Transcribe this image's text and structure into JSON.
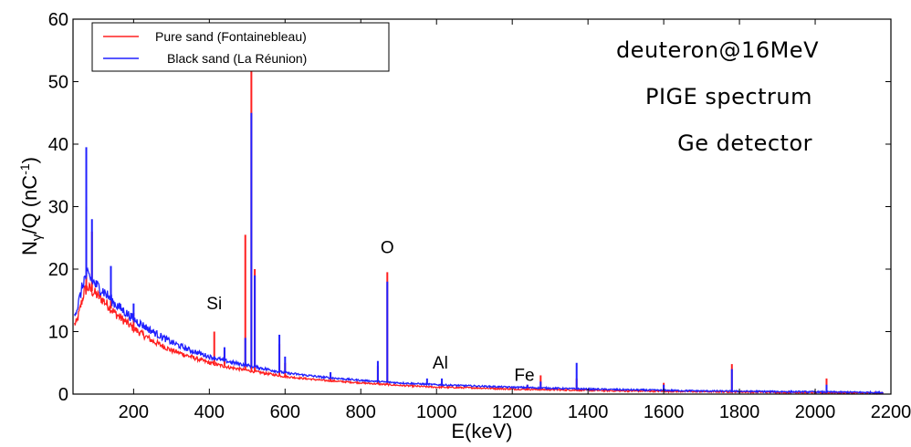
{
  "chart_data": {
    "type": "line",
    "xlabel": "E(keV)",
    "ylabel_main": "N",
    "ylabel_sub": "γ",
    "ylabel_rest": "/Q (nC",
    "ylabel_sup": "-1",
    "ylabel_end": ")",
    "xlim": [
      40,
      2200
    ],
    "ylim": [
      0,
      60
    ],
    "x_ticks": [
      "200",
      "400",
      "600",
      "800",
      "1000",
      "1200",
      "1400",
      "1600",
      "1800",
      "2000",
      "2200"
    ],
    "y_ticks": [
      "0",
      "10",
      "20",
      "30",
      "40",
      "50",
      "60"
    ],
    "annotations": [
      {
        "text": "Si",
        "x": 413,
        "y": 13
      },
      {
        "text": "O",
        "x": 870,
        "y": 22
      },
      {
        "text": "Al",
        "x": 1010,
        "y": 3.5
      },
      {
        "text": "Fe",
        "x": 1232,
        "y": 1.5
      }
    ],
    "info_text": [
      "deuteron@16MeV",
      "PIGE spectrum",
      "Ge detector"
    ],
    "legend_position": "top-left",
    "series": [
      {
        "name": "Pure sand (Fontainebleau)",
        "color": "#ff2020",
        "continuum": [
          [
            40,
            11
          ],
          [
            50,
            11.5
          ],
          [
            60,
            14
          ],
          [
            70,
            16.5
          ],
          [
            80,
            17
          ],
          [
            100,
            16
          ],
          [
            120,
            15
          ],
          [
            150,
            13
          ],
          [
            200,
            10.5
          ],
          [
            250,
            8.5
          ],
          [
            300,
            7
          ],
          [
            350,
            6
          ],
          [
            400,
            5
          ],
          [
            450,
            4.3
          ],
          [
            500,
            3.8
          ],
          [
            550,
            3.3
          ],
          [
            600,
            2.8
          ],
          [
            700,
            2.2
          ],
          [
            800,
            1.8
          ],
          [
            900,
            1.4
          ],
          [
            1000,
            1.1
          ],
          [
            1100,
            1.0
          ],
          [
            1200,
            0.8
          ],
          [
            1300,
            0.7
          ],
          [
            1400,
            0.6
          ],
          [
            1500,
            0.5
          ],
          [
            1600,
            0.45
          ],
          [
            1700,
            0.4
          ],
          [
            1800,
            0.35
          ],
          [
            1900,
            0.3
          ],
          [
            2000,
            0.25
          ],
          [
            2100,
            0.2
          ],
          [
            2180,
            0.15
          ]
        ],
        "peaks": [
          [
            75,
            30
          ],
          [
            90,
            26
          ],
          [
            140,
            17
          ],
          [
            200,
            13
          ],
          [
            413,
            10
          ],
          [
            440,
            7
          ],
          [
            495,
            25.5
          ],
          [
            511,
            52
          ],
          [
            520,
            20
          ],
          [
            585,
            8
          ],
          [
            600,
            5
          ],
          [
            720,
            3
          ],
          [
            845,
            4.5
          ],
          [
            870,
            19.5
          ],
          [
            1014,
            2
          ],
          [
            1240,
            1.5
          ],
          [
            1275,
            3
          ],
          [
            1370,
            2.5
          ],
          [
            1600,
            1.8
          ],
          [
            1780,
            4.8
          ],
          [
            2030,
            2.5
          ]
        ]
      },
      {
        "name": "Black sand (La Réunion)",
        "color": "#2020ff",
        "continuum": [
          [
            40,
            13
          ],
          [
            50,
            13.5
          ],
          [
            60,
            16
          ],
          [
            70,
            18.5
          ],
          [
            80,
            19
          ],
          [
            100,
            17.5
          ],
          [
            120,
            16.5
          ],
          [
            150,
            14.5
          ],
          [
            200,
            12
          ],
          [
            250,
            10
          ],
          [
            300,
            8.3
          ],
          [
            350,
            7
          ],
          [
            400,
            6
          ],
          [
            450,
            5.2
          ],
          [
            500,
            4.6
          ],
          [
            550,
            4
          ],
          [
            600,
            3.4
          ],
          [
            700,
            2.7
          ],
          [
            800,
            2.2
          ],
          [
            900,
            1.8
          ],
          [
            1000,
            1.5
          ],
          [
            1100,
            1.3
          ],
          [
            1200,
            1.1
          ],
          [
            1300,
            0.95
          ],
          [
            1400,
            0.8
          ],
          [
            1500,
            0.7
          ],
          [
            1600,
            0.6
          ],
          [
            1700,
            0.5
          ],
          [
            1800,
            0.45
          ],
          [
            1900,
            0.4
          ],
          [
            2000,
            0.35
          ],
          [
            2100,
            0.3
          ],
          [
            2180,
            0.25
          ]
        ],
        "peaks": [
          [
            75,
            39.5
          ],
          [
            90,
            28
          ],
          [
            140,
            20.5
          ],
          [
            200,
            14.5
          ],
          [
            413,
            6
          ],
          [
            440,
            7.5
          ],
          [
            495,
            9
          ],
          [
            511,
            45
          ],
          [
            520,
            19
          ],
          [
            585,
            9.5
          ],
          [
            600,
            6
          ],
          [
            720,
            3.5
          ],
          [
            845,
            5.3
          ],
          [
            870,
            18
          ],
          [
            975,
            2.5
          ],
          [
            1014,
            2.5
          ],
          [
            1240,
            1.5
          ],
          [
            1275,
            2
          ],
          [
            1370,
            5
          ],
          [
            1600,
            1.5
          ],
          [
            1780,
            4
          ],
          [
            2030,
            1.5
          ]
        ]
      }
    ]
  }
}
